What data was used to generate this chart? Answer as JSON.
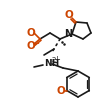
{
  "bg_color": "#ffffff",
  "bond_color": "#1a1a1a",
  "o_color": "#cc4400",
  "n_color": "#1a1a1a",
  "lw": 1.2,
  "fig_width": 1.12,
  "fig_height": 1.11,
  "dpi": 100,
  "xlim": [
    0,
    112
  ],
  "ylim": [
    0,
    111
  ]
}
